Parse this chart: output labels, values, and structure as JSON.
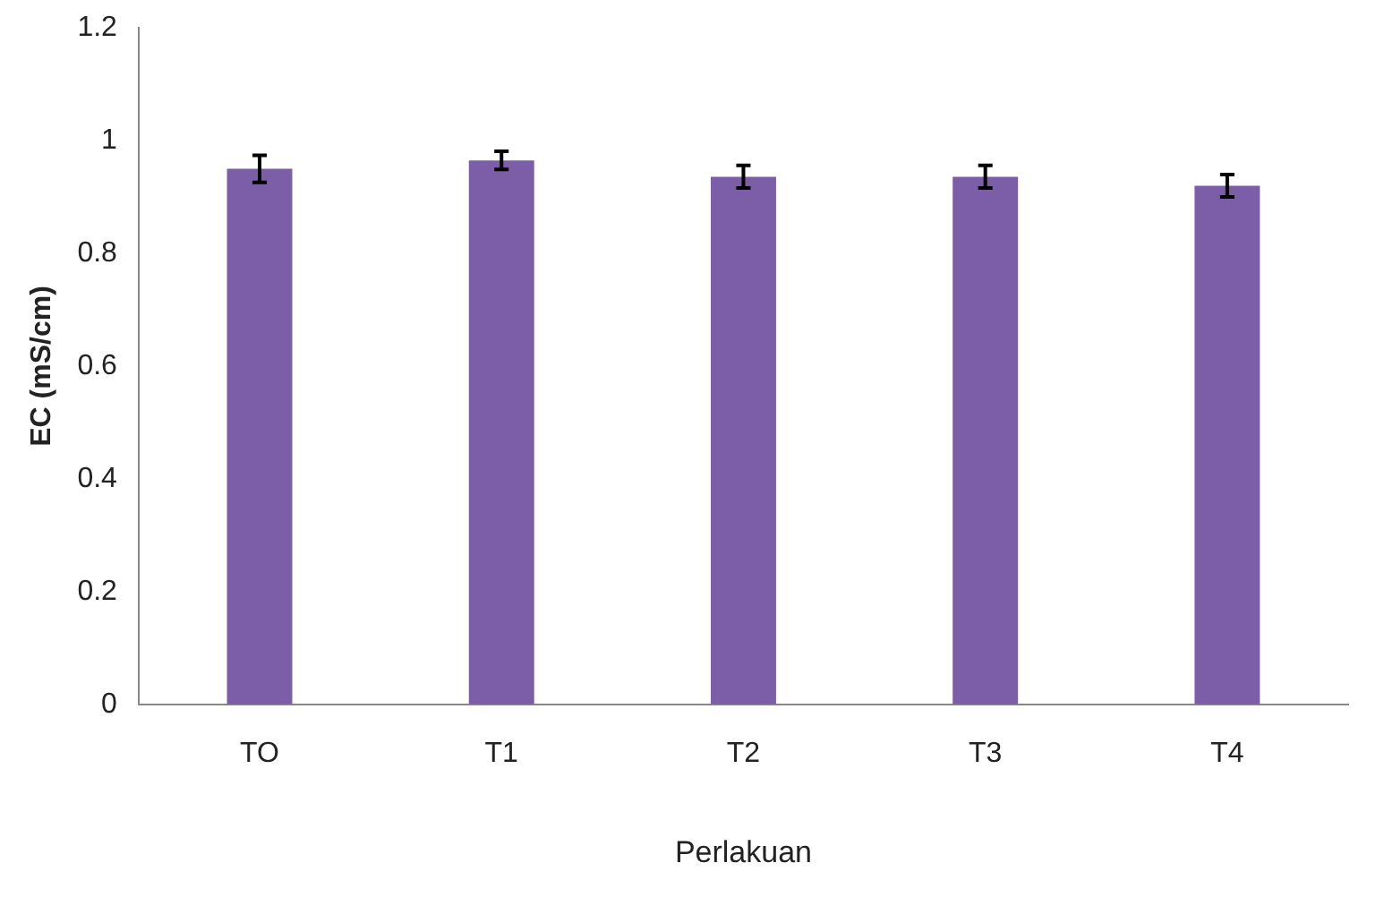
{
  "chart_data": {
    "type": "bar",
    "xlabel": "Perlakuan",
    "ylabel": "EC (mS/cm)",
    "categories": [
      "TO",
      "T1",
      "T2",
      "T3",
      "T4"
    ],
    "values": [
      0.95,
      0.965,
      0.936,
      0.936,
      0.92
    ],
    "errors": [
      0.024,
      0.016,
      0.02,
      0.02,
      0.02
    ],
    "color": "#7b5ea7",
    "ylim": [
      0,
      1.2
    ],
    "yticks": [
      0,
      0.2,
      0.4,
      0.6,
      0.8,
      1,
      1.2
    ],
    "grid": false,
    "legend": false
  }
}
